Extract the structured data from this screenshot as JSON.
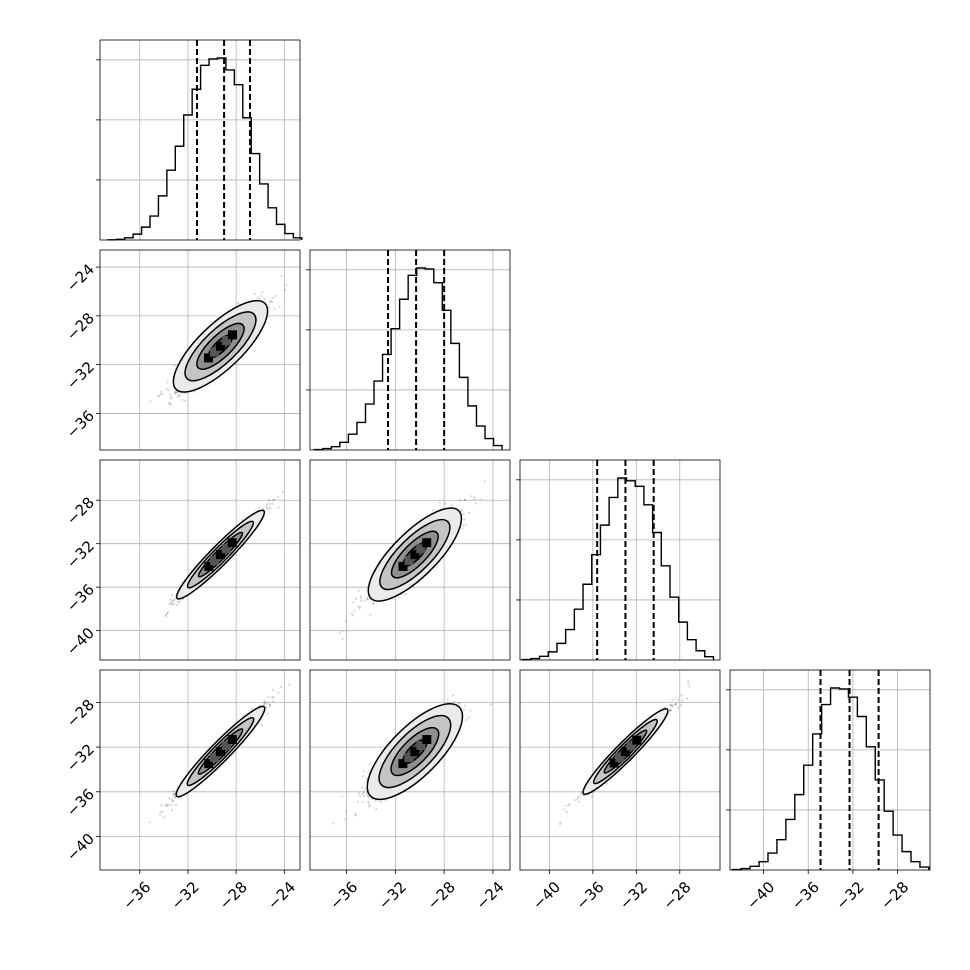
{
  "chart_data": {
    "type": "corner",
    "n_params": 4,
    "axes": [
      {
        "index": 0,
        "lim": [
          -39.3,
          -22.7
        ],
        "ticks": [
          -36,
          -32,
          -28,
          -24
        ],
        "tick_labels": [
          "−36",
          "−32",
          "−28",
          "−24"
        ]
      },
      {
        "index": 1,
        "lim": [
          -39.0,
          -22.6
        ],
        "ticks": [
          -36,
          -32,
          -28,
          -24
        ],
        "tick_labels": [
          "−36",
          "−32",
          "−28",
          "−24"
        ]
      },
      {
        "index": 2,
        "lim": [
          -42.7,
          -24.3
        ],
        "ticks": [
          -40,
          -36,
          -32,
          -28
        ],
        "tick_labels": [
          "−40",
          "−36",
          "−32",
          "−28"
        ]
      },
      {
        "index": 3,
        "lim": [
          -43.0,
          -25.1
        ],
        "ticks": [
          -40,
          -36,
          -32,
          -28
        ],
        "tick_labels": [
          "−40",
          "−36",
          "−32",
          "−28"
        ]
      }
    ],
    "marginals": [
      {
        "param": 0,
        "quantiles": [
          -31.25,
          -29.0,
          -26.85
        ],
        "bins": [
          -38.3,
          -37.6,
          -36.9,
          -36.2,
          -35.5,
          -34.8,
          -34.1,
          -33.4,
          -32.7,
          -32.0,
          -31.3,
          -30.6,
          -29.9,
          -29.2,
          -28.5,
          -27.8,
          -27.1,
          -26.4,
          -25.7,
          -25.0,
          -24.3,
          -23.6,
          -22.9
        ],
        "counts": [
          1,
          4,
          12,
          32,
          70,
          130,
          240,
          380,
          510,
          680,
          820,
          950,
          985,
          990,
          925,
          845,
          665,
          470,
          305,
          175,
          85,
          35,
          12
        ]
      },
      {
        "param": 1,
        "quantiles": [
          -32.6,
          -30.3,
          -28.0
        ],
        "bins": [
          -38.3,
          -37.6,
          -36.9,
          -36.2,
          -35.5,
          -34.8,
          -34.1,
          -33.4,
          -32.7,
          -32.0,
          -31.3,
          -30.6,
          -29.9,
          -29.2,
          -28.5,
          -27.8,
          -27.1,
          -26.4,
          -25.7,
          -25.0,
          -24.3,
          -23.6
        ],
        "counts": [
          2,
          8,
          18,
          42,
          86,
          150,
          250,
          375,
          520,
          660,
          820,
          950,
          990,
          985,
          910,
          760,
          580,
          395,
          240,
          130,
          62,
          24
        ]
      },
      {
        "param": 2,
        "quantiles": [
          -35.6,
          -33.0,
          -30.4
        ],
        "bins": [
          -42.1,
          -41.3,
          -40.5,
          -39.7,
          -38.9,
          -38.1,
          -37.3,
          -36.5,
          -35.7,
          -34.9,
          -34.1,
          -33.3,
          -32.5,
          -31.7,
          -30.9,
          -30.1,
          -29.3,
          -28.5,
          -27.7,
          -26.9,
          -26.1,
          -25.3
        ],
        "counts": [
          2,
          8,
          20,
          44,
          90,
          165,
          275,
          410,
          570,
          730,
          880,
          985,
          970,
          940,
          840,
          690,
          510,
          340,
          205,
          110,
          50,
          18
        ]
      },
      {
        "param": 3,
        "quantiles": [
          -34.9,
          -32.3,
          -29.7
        ],
        "bins": [
          -42.4,
          -41.6,
          -40.8,
          -40.0,
          -39.2,
          -38.4,
          -37.6,
          -36.8,
          -36.0,
          -35.2,
          -34.4,
          -33.6,
          -32.8,
          -32.0,
          -31.2,
          -30.4,
          -29.6,
          -28.8,
          -28.0,
          -27.2,
          -26.4,
          -25.6
        ],
        "counts": [
          2,
          8,
          20,
          45,
          92,
          165,
          275,
          410,
          570,
          740,
          900,
          990,
          985,
          940,
          835,
          670,
          490,
          320,
          190,
          100,
          45,
          16
        ]
      }
    ],
    "pairs": [
      {
        "x_param": 0,
        "y_param": 1,
        "center": [
          -29.3,
          -30.5
        ],
        "slope": 0.95,
        "spread_major": 2.55,
        "spread_minor": 0.48
      },
      {
        "x_param": 0,
        "y_param": 2,
        "center": [
          -29.3,
          -33.0
        ],
        "slope": 1.12,
        "spread_major": 2.7,
        "spread_minor": 0.22
      },
      {
        "x_param": 1,
        "y_param": 2,
        "center": [
          -30.4,
          -33.0
        ],
        "slope": 1.12,
        "spread_major": 2.7,
        "spread_minor": 0.5
      },
      {
        "x_param": 0,
        "y_param": 3,
        "center": [
          -29.3,
          -32.4
        ],
        "slope": 1.1,
        "spread_major": 2.7,
        "spread_minor": 0.22
      },
      {
        "x_param": 1,
        "y_param": 3,
        "center": [
          -30.4,
          -32.4
        ],
        "slope": 1.1,
        "spread_major": 2.7,
        "spread_minor": 0.55
      },
      {
        "x_param": 2,
        "y_param": 3,
        "center": [
          -33.0,
          -32.4
        ],
        "slope": 0.98,
        "spread_major": 2.7,
        "spread_minor": 0.22
      }
    ],
    "contour_levels": [
      0.5,
      1.0,
      1.5,
      2.0
    ],
    "xlabel": "",
    "ylabel": "",
    "title": "",
    "grid": true
  }
}
